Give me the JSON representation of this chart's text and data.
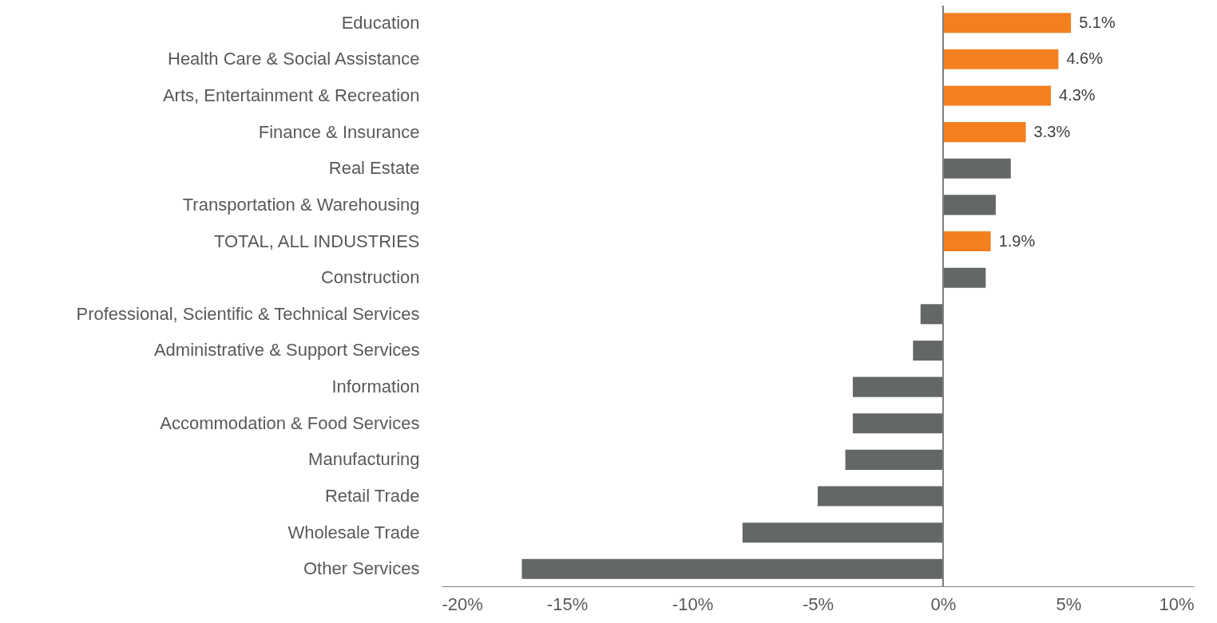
{
  "chart_data": {
    "type": "bar",
    "orientation": "horizontal",
    "categories": [
      "Education",
      "Health Care & Social Assistance",
      "Arts, Entertainment & Recreation",
      "Finance & Insurance",
      "Real Estate",
      "Transportation & Warehousing",
      "TOTAL, ALL INDUSTRIES",
      "Construction",
      "Professional, Scientific & Technical Services",
      "Administrative & Support Services",
      "Information",
      "Accommodation & Food Services",
      "Manufacturing",
      "Retail Trade",
      "Wholesale Trade",
      "Other Services"
    ],
    "values": [
      5.1,
      4.6,
      4.3,
      3.3,
      2.7,
      2.1,
      1.9,
      1.7,
      -0.9,
      -1.2,
      -3.6,
      -3.6,
      -3.9,
      -5.0,
      -8.0,
      -16.8
    ],
    "colors": [
      "#f47f20",
      "#f47f20",
      "#f47f20",
      "#f47f20",
      "#646767",
      "#646767",
      "#f47f20",
      "#646767",
      "#646767",
      "#646767",
      "#646767",
      "#646767",
      "#646767",
      "#646767",
      "#646767",
      "#646767"
    ],
    "value_labels": [
      "5.1%",
      "4.6%",
      "4.3%",
      "3.3%",
      null,
      null,
      "1.9%",
      null,
      null,
      null,
      null,
      null,
      null,
      null,
      null,
      null
    ],
    "xlim": [
      -20,
      10
    ],
    "xticks": [
      {
        "value": -20,
        "label": "-20%"
      },
      {
        "value": -15,
        "label": "-15%"
      },
      {
        "value": -10,
        "label": "-10%"
      },
      {
        "value": -5,
        "label": "-5%"
      },
      {
        "value": 0,
        "label": "0%"
      },
      {
        "value": 5,
        "label": "5%"
      },
      {
        "value": 10,
        "label": "10%"
      }
    ],
    "ref_lines": [
      {
        "axis": "x",
        "value": 0,
        "color": "#7f7f7f"
      }
    ],
    "grid": false
  }
}
